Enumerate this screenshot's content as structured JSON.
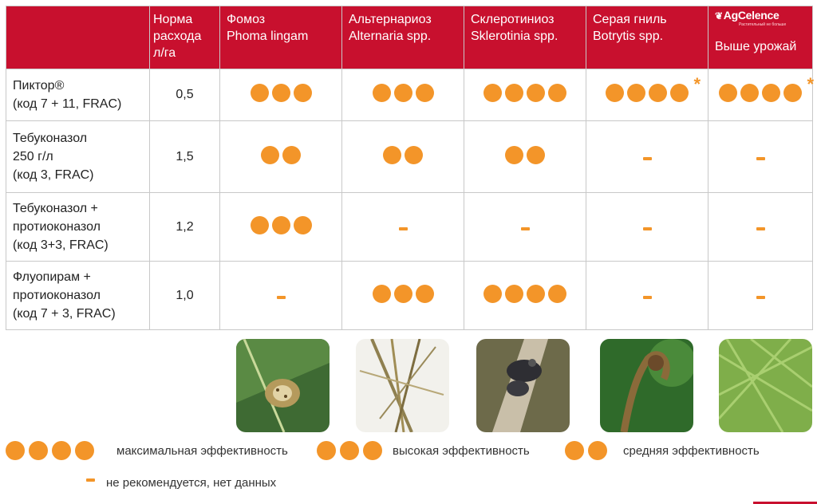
{
  "header": {
    "rate": [
      "Норма",
      "расхода",
      "л/га"
    ],
    "diseases": [
      {
        "ru": "Фомоз",
        "latin": "Phoma lingam"
      },
      {
        "ru": "Альтернариоз",
        "latin": "Alternaria spp."
      },
      {
        "ru": "Склеротиниоз",
        "latin": "Sklerotinia spp."
      },
      {
        "ru": "Серая гниль",
        "latin": "Botrytis spp."
      }
    ],
    "logo": "AgCelence",
    "logo_tagline": "Растительный не больше",
    "yield_label": "Выше урожай"
  },
  "rows": [
    {
      "product": [
        "Пиктор®",
        "(код 7 + 11, FRAC)"
      ],
      "rate": "0,5",
      "ratings": [
        3,
        3,
        4,
        4,
        4
      ],
      "star_cols": [
        3,
        4
      ]
    },
    {
      "product": [
        "Тебуконазол",
        "250 г/л",
        "(код 3, FRAC)"
      ],
      "rate": "1,5",
      "ratings": [
        2,
        2,
        2,
        0,
        0
      ],
      "star_cols": []
    },
    {
      "product": [
        "Тебуконазол +",
        "протиоконазол",
        "(код 3+3, FRAC)"
      ],
      "rate": "1,2",
      "ratings": [
        3,
        0,
        0,
        0,
        0
      ],
      "star_cols": []
    },
    {
      "product": [
        "Флуопирам +",
        "протиоконазол",
        "(код 7 + 3, FRAC)"
      ],
      "rate": "1,0",
      "ratings": [
        0,
        3,
        4,
        0,
        0
      ],
      "star_cols": []
    }
  ],
  "photos": [
    "phoma-lesion-photo",
    "alternaria-pods-photo",
    "sclerotinia-stem-photo",
    "botrytis-pod-photo",
    "green-pods-photo"
  ],
  "legend": {
    "max": "максимальная эффективность",
    "high": "высокая эффективность",
    "medium": "средняя эффективность",
    "none": "не рекомендуется, нет данных"
  },
  "colors": {
    "header_bg": "#c8102e",
    "dot": "#f39529"
  }
}
